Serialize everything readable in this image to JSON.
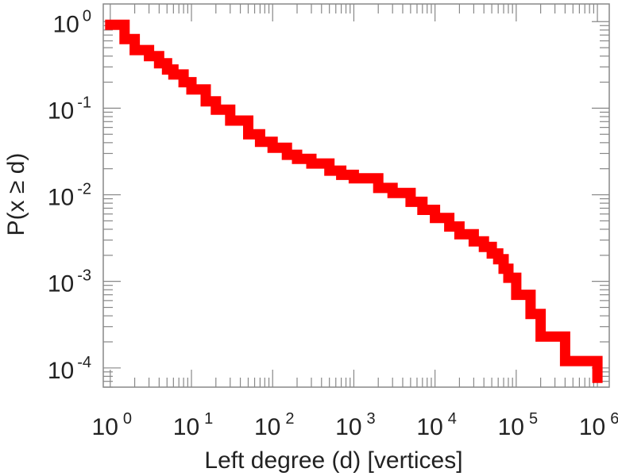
{
  "chart_data": {
    "type": "line",
    "title": "",
    "xlabel": "Left degree (d) [vertices]",
    "ylabel": "P(x ≥ d)",
    "xscale": "log",
    "yscale": "log",
    "xlim": [
      0.82,
      1400000.0
    ],
    "ylim": [
      6e-05,
      1.6
    ],
    "grid": false,
    "legend": "none",
    "x_ticks": [
      {
        "value": 1,
        "base": "10",
        "exp": "0"
      },
      {
        "value": 10,
        "base": "10",
        "exp": "1"
      },
      {
        "value": 100,
        "base": "10",
        "exp": "2"
      },
      {
        "value": 1000,
        "base": "10",
        "exp": "3"
      },
      {
        "value": 10000,
        "base": "10",
        "exp": "4"
      },
      {
        "value": 100000,
        "base": "10",
        "exp": "5"
      },
      {
        "value": 1000000,
        "base": "10",
        "exp": "6"
      }
    ],
    "y_ticks": [
      {
        "value": 1,
        "base": "10",
        "exp": "0"
      },
      {
        "value": 0.1,
        "base": "10",
        "exp": "-1"
      },
      {
        "value": 0.01,
        "base": "10",
        "exp": "-2"
      },
      {
        "value": 0.001,
        "base": "10",
        "exp": "-3"
      },
      {
        "value": 0.0001,
        "base": "10",
        "exp": "-4"
      }
    ],
    "series": [
      {
        "color": "#ff0000",
        "x": [
          1,
          1.5,
          2,
          3,
          4,
          5,
          6,
          8,
          10,
          15,
          20,
          30,
          50,
          70,
          100,
          150,
          200,
          300,
          500,
          700,
          1000,
          2000,
          3000,
          5000,
          7000,
          10000,
          15000,
          20000,
          30000,
          40000,
          50000,
          60000,
          70000,
          80000,
          100000,
          150000,
          200000,
          400000,
          1000000
        ],
        "y": [
          0.92,
          0.63,
          0.47,
          0.4,
          0.33,
          0.28,
          0.245,
          0.2,
          0.165,
          0.12,
          0.096,
          0.072,
          0.05,
          0.041,
          0.035,
          0.029,
          0.026,
          0.023,
          0.019,
          0.017,
          0.0155,
          0.012,
          0.0105,
          0.0083,
          0.0067,
          0.0054,
          0.0043,
          0.0035,
          0.0029,
          0.0025,
          0.0021,
          0.0018,
          0.0014,
          0.0011,
          0.0007,
          0.00042,
          0.00023,
          0.00012,
          7.7e-05
        ]
      }
    ]
  }
}
